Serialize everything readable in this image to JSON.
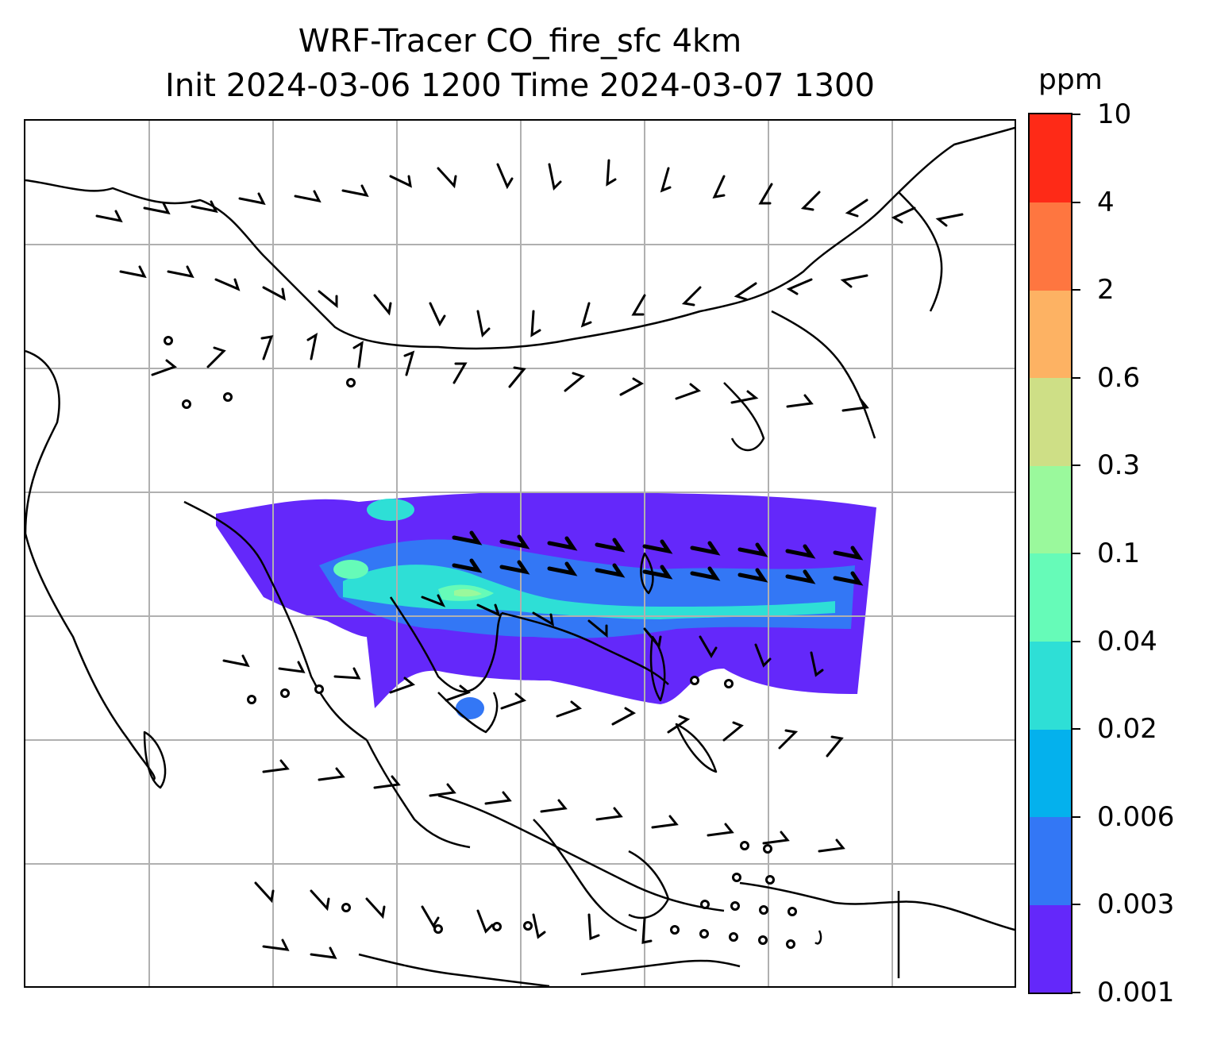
{
  "title": {
    "line1": "WRF-Tracer CO_fire_sfc 4km",
    "line2": "Init 2024-03-06 1200 Time 2024-03-07 1300"
  },
  "colorbar": {
    "unit": "ppm",
    "ticks": [
      "0.001",
      "0.003",
      "0.006",
      "0.02",
      "0.04",
      "0.1",
      "0.3",
      "0.6",
      "2",
      "4",
      "10"
    ],
    "colors": [
      "#6428fa",
      "#3377f5",
      "#04b1ed",
      "#2edfd6",
      "#66fbb8",
      "#9af99c",
      "#cedf86",
      "#fdb263",
      "#fe7640",
      "#fe2a17"
    ]
  },
  "map": {
    "gridlines": true,
    "field": "CO_fire_sfc",
    "wind_barbs": true,
    "coastline_color": "#000000",
    "grid_color": "#b0b0b0"
  }
}
